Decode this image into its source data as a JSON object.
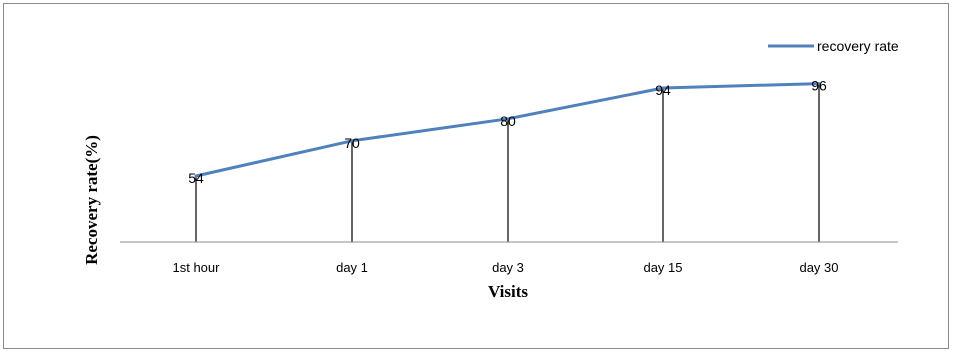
{
  "chart_data": {
    "type": "line",
    "categories": [
      "1st hour",
      "day 1",
      "day 3",
      "day 15",
      "day 30"
    ],
    "series": [
      {
        "name": "recovery rate",
        "values": [
          54,
          70,
          80,
          94,
          96
        ],
        "color": "#4F81BD"
      }
    ],
    "data_labels": [
      "54",
      "70",
      "80",
      "94",
      "96"
    ],
    "xlabel": "Visits",
    "ylabel": "Recovery rate(%)",
    "ylim": [
      0,
      100
    ],
    "drop_lines": true,
    "grid": false,
    "legend_position": "top-right"
  }
}
